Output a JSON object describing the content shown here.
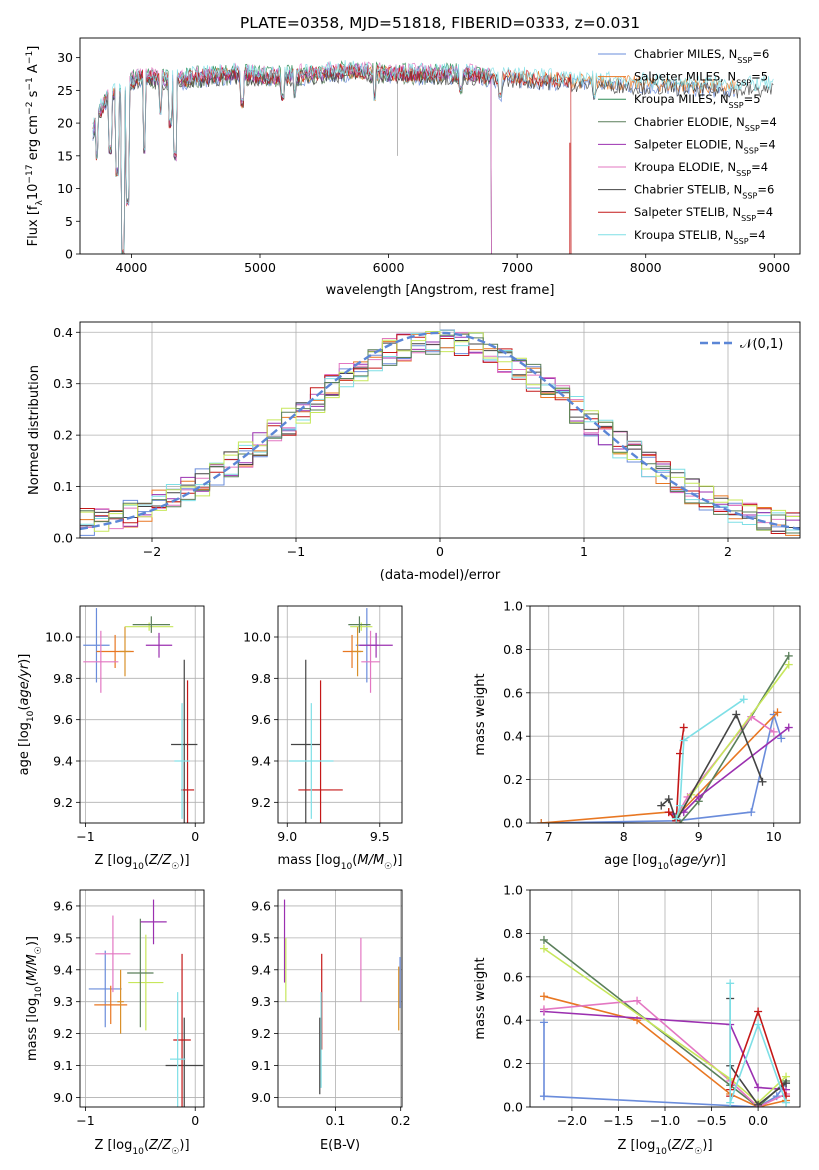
{
  "figure_title": "PLATE=0358, MJD=51818, FIBERID=0333, z=0.031",
  "colors": {
    "Chabrier MILES": "#6a8cdb",
    "Salpeter MILES": "#e87722",
    "Kroupa MILES": "#2e8b57",
    "Chabrier ELODIE": "#5a7f5a",
    "Salpeter ELODIE": "#9b30b0",
    "Kroupa ELODIE": "#e377c2",
    "Chabrier STELIB": "#444444",
    "Salpeter STELIB": "#c41818",
    "Kroupa STELIB": "#7edfe6",
    "extra_lime": "#c7e75b",
    "extra_orange": "#d9902a",
    "gaussian": "#5b86d6",
    "grid": "#b0b0b0"
  },
  "chart_data": [
    {
      "type": "line",
      "id": "spectrum",
      "title": "PLATE=0358, MJD=51818, FIBERID=0333, z=0.031",
      "xlabel": "wavelength [Angstrom, rest frame]",
      "ylabel": "Flux [f_λ10^-17 erg cm^-2 s^-1 A^-1]",
      "xlim": [
        3600,
        9200
      ],
      "ylim": [
        0,
        33
      ],
      "xticks": [
        4000,
        5000,
        6000,
        7000,
        8000,
        9000
      ],
      "yticks": [
        0,
        5,
        10,
        15,
        20,
        25,
        30
      ],
      "grid": false,
      "legend_position": "top-right",
      "series": [
        {
          "name": "Chabrier MILES",
          "nssp": "6",
          "xrange": [
            3700,
            8700
          ]
        },
        {
          "name": "Salpeter MILES",
          "nssp": "5",
          "xrange": [
            3700,
            8700
          ]
        },
        {
          "name": "Kroupa MILES",
          "nssp": "5",
          "xrange": [
            3700,
            6800
          ]
        },
        {
          "name": "Chabrier ELODIE",
          "nssp": "4",
          "xrange": [
            3700,
            6800
          ]
        },
        {
          "name": "Salpeter ELODIE",
          "nssp": "4",
          "xrange": [
            3700,
            6800
          ]
        },
        {
          "name": "Kroupa ELODIE",
          "nssp": "4",
          "xrange": [
            3700,
            6800
          ]
        },
        {
          "name": "Chabrier STELIB",
          "nssp": "6",
          "xrange": [
            3700,
            9000
          ]
        },
        {
          "name": "Salpeter STELIB",
          "nssp": "4",
          "xrange": [
            3700,
            7420
          ]
        },
        {
          "name": "Kroupa STELIB",
          "nssp": "4",
          "xrange": [
            3700,
            9000
          ]
        }
      ],
      "continuum": [
        [
          3700,
          19
        ],
        [
          3760,
          22
        ],
        [
          3850,
          24.5
        ],
        [
          3950,
          24.5
        ],
        [
          4000,
          26.5
        ],
        [
          4100,
          27
        ],
        [
          4300,
          26.5
        ],
        [
          4500,
          27
        ],
        [
          4800,
          27.5
        ],
        [
          5100,
          27
        ],
        [
          5400,
          27.5
        ],
        [
          5700,
          28
        ],
        [
          6000,
          27.5
        ],
        [
          6300,
          27.5
        ],
        [
          6600,
          27.5
        ],
        [
          6800,
          27
        ],
        [
          7000,
          27
        ],
        [
          7400,
          26.5
        ],
        [
          8000,
          26
        ],
        [
          8600,
          25.5
        ],
        [
          9000,
          25.5
        ]
      ],
      "absorption_lines": [
        [
          3730,
          15
        ],
        [
          3835,
          16
        ],
        [
          3889,
          12.5
        ],
        [
          3934,
          0
        ],
        [
          3968,
          8
        ],
        [
          4102,
          16
        ],
        [
          4227,
          22
        ],
        [
          4304,
          20
        ],
        [
          4340,
          15
        ],
        [
          4861,
          23
        ],
        [
          5175,
          24
        ],
        [
          5270,
          24.5
        ],
        [
          5893,
          24
        ],
        [
          6563,
          25
        ],
        [
          6867,
          24
        ],
        [
          7600,
          24
        ]
      ]
    },
    {
      "type": "histogram",
      "id": "residuals",
      "xlabel": "(data-model)/error",
      "ylabel": "Normed distribution",
      "xlim": [
        -2.5,
        2.5
      ],
      "ylim": [
        0,
        0.42
      ],
      "xticks": [
        -2,
        -1,
        0,
        1,
        2
      ],
      "yticks": [
        0.0,
        0.1,
        0.2,
        0.3,
        0.4
      ],
      "grid": true,
      "legend_position": "top-right",
      "legend_label": "𝒩(0,1)",
      "bin_width": 0.1
    },
    {
      "type": "scatter",
      "id": "age_vs_Z",
      "xlabel": "Z [log10(Z/Z☉)]",
      "ylabel": "age [log10(age/yr)]",
      "xlim": [
        -1.05,
        0.08
      ],
      "ylim": [
        9.1,
        10.15
      ],
      "xticks": [
        -1,
        0
      ],
      "yticks": [
        9.2,
        9.4,
        9.6,
        9.8,
        10.0
      ],
      "grid": true,
      "points": [
        {
          "c": "Chabrier MILES",
          "x": -0.9,
          "y": 9.96,
          "ex": 0.12,
          "ey": 0.18
        },
        {
          "c": "Salpeter MILES",
          "x": -0.73,
          "y": 9.93,
          "ex": 0.17,
          "ey": 0.08
        },
        {
          "c": "Kroupa ELODIE",
          "x": -0.86,
          "y": 9.88,
          "ex": 0.16,
          "ey": 0.15
        },
        {
          "c": "extra_orange",
          "x": -0.64,
          "y": 9.93,
          "ex": 0.05,
          "ey": 0.12
        },
        {
          "c": "extra_lime",
          "x": -0.42,
          "y": 10.05,
          "ex": 0.22,
          "ey": 0.02
        },
        {
          "c": "Chabrier ELODIE",
          "x": -0.4,
          "y": 10.06,
          "ex": 0.17,
          "ey": 0.04
        },
        {
          "c": "Salpeter ELODIE",
          "x": -0.33,
          "y": 9.96,
          "ex": 0.12,
          "ey": 0.06
        },
        {
          "c": "Chabrier STELIB",
          "x": -0.1,
          "y": 9.48,
          "ex": 0.12,
          "ey": 0.41
        },
        {
          "c": "Salpeter STELIB",
          "x": -0.07,
          "y": 9.26,
          "ex": 0.06,
          "ey": 0.53
        },
        {
          "c": "Kroupa STELIB",
          "x": -0.12,
          "y": 9.4,
          "ex": 0.07,
          "ey": 0.28
        }
      ]
    },
    {
      "type": "scatter",
      "id": "age_vs_mass",
      "xlabel": "mass [log10(M/M☉)]",
      "ylabel": "",
      "xlim": [
        8.95,
        9.62
      ],
      "ylim": [
        9.1,
        10.15
      ],
      "xticks": [
        9.0,
        9.5
      ],
      "yticks": [
        9.2,
        9.4,
        9.6,
        9.8,
        10.0
      ],
      "grid": true,
      "points": [
        {
          "c": "Chabrier MILES",
          "x": 9.43,
          "y": 9.96,
          "ex": 0.06,
          "ey": 0.18
        },
        {
          "c": "Salpeter MILES",
          "x": 9.35,
          "y": 9.93,
          "ex": 0.05,
          "ey": 0.08
        },
        {
          "c": "Kroupa ELODIE",
          "x": 9.45,
          "y": 9.88,
          "ex": 0.05,
          "ey": 0.15
        },
        {
          "c": "extra_orange",
          "x": 9.38,
          "y": 9.93,
          "ex": 0.03,
          "ey": 0.12
        },
        {
          "c": "extra_lime",
          "x": 9.4,
          "y": 10.05,
          "ex": 0.06,
          "ey": 0.02
        },
        {
          "c": "Chabrier ELODIE",
          "x": 9.39,
          "y": 10.06,
          "ex": 0.06,
          "ey": 0.04
        },
        {
          "c": "Salpeter ELODIE",
          "x": 9.48,
          "y": 9.96,
          "ex": 0.09,
          "ey": 0.06
        },
        {
          "c": "Chabrier STELIB",
          "x": 9.1,
          "y": 9.48,
          "ex": 0.08,
          "ey": 0.41
        },
        {
          "c": "Salpeter STELIB",
          "x": 9.18,
          "y": 9.26,
          "ex": 0.12,
          "ey": 0.53
        },
        {
          "c": "Kroupa STELIB",
          "x": 9.13,
          "y": 9.4,
          "ex": 0.12,
          "ey": 0.28
        }
      ]
    },
    {
      "type": "line",
      "id": "massweight_vs_age",
      "xlabel": "age [log10(age/yr)]",
      "ylabel": "mass weight",
      "xlim": [
        6.75,
        10.35
      ],
      "ylim": [
        0,
        1.0
      ],
      "xticks": [
        7,
        8,
        9,
        10
      ],
      "yticks": [
        0.0,
        0.2,
        0.4,
        0.6,
        0.8,
        1.0
      ],
      "grid": true,
      "series": [
        {
          "c": "Chabrier MILES",
          "x": [
            6.9,
            8.7,
            9.7,
            10.0,
            10.1
          ],
          "y": [
            0.0,
            0.01,
            0.05,
            0.5,
            0.39
          ]
        },
        {
          "c": "Salpeter MILES",
          "x": [
            6.9,
            8.6,
            8.7,
            10.05
          ],
          "y": [
            0.0,
            0.05,
            0.03,
            0.51
          ]
        },
        {
          "c": "Chabrier ELODIE",
          "x": [
            8.75,
            9.0,
            10.2
          ],
          "y": [
            0.0,
            0.1,
            0.77
          ]
        },
        {
          "c": "Salpeter ELODIE",
          "x": [
            8.65,
            8.8,
            9.0,
            10.2
          ],
          "y": [
            0.04,
            0.05,
            0.12,
            0.44
          ]
        },
        {
          "c": "Kroupa ELODIE",
          "x": [
            8.7,
            8.85,
            9.7,
            10.0
          ],
          "y": [
            0.03,
            0.12,
            0.49,
            0.42
          ]
        },
        {
          "c": "extra_lime",
          "x": [
            8.7,
            8.9,
            10.2
          ],
          "y": [
            0.02,
            0.13,
            0.73
          ]
        },
        {
          "c": "Chabrier STELIB",
          "x": [
            8.5,
            8.6,
            8.7,
            9.5,
            9.85
          ],
          "y": [
            0.08,
            0.11,
            0.01,
            0.5,
            0.19
          ]
        },
        {
          "c": "Salpeter STELIB",
          "x": [
            8.6,
            8.7,
            8.75,
            8.8
          ],
          "y": [
            0.05,
            0.01,
            0.32,
            0.44
          ]
        },
        {
          "c": "Kroupa STELIB",
          "x": [
            8.7,
            8.75,
            8.8,
            9.6
          ],
          "y": [
            0.02,
            0.08,
            0.38,
            0.57
          ]
        }
      ]
    },
    {
      "type": "scatter",
      "id": "mass_vs_Z",
      "xlabel": "Z [log10(Z/Z☉)]",
      "ylabel": "mass [log10(M/M☉)]",
      "xlim": [
        -1.05,
        0.08
      ],
      "ylim": [
        8.97,
        9.65
      ],
      "xticks": [
        -1,
        0
      ],
      "yticks": [
        9.0,
        9.1,
        9.2,
        9.3,
        9.4,
        9.5,
        9.6
      ],
      "grid": true,
      "points": [
        {
          "c": "Chabrier MILES",
          "x": -0.82,
          "y": 9.34,
          "ex": 0.15,
          "ey": 0.12
        },
        {
          "c": "Salpeter MILES",
          "x": -0.77,
          "y": 9.29,
          "ex": 0.15,
          "ey": 0.06
        },
        {
          "c": "Kroupa ELODIE",
          "x": -0.75,
          "y": 9.45,
          "ex": 0.16,
          "ey": 0.12
        },
        {
          "c": "extra_orange",
          "x": -0.68,
          "y": 9.3,
          "ex": 0.03,
          "ey": 0.1
        },
        {
          "c": "extra_lime",
          "x": -0.45,
          "y": 9.36,
          "ex": 0.16,
          "ey": 0.15
        },
        {
          "c": "Chabrier ELODIE",
          "x": -0.5,
          "y": 9.39,
          "ex": 0.12,
          "ey": 0.17
        },
        {
          "c": "Salpeter ELODIE",
          "x": -0.38,
          "y": 9.55,
          "ex": 0.12,
          "ey": 0.07
        },
        {
          "c": "Chabrier STELIB",
          "x": -0.1,
          "y": 9.1,
          "ex": 0.17,
          "ey": 0.15
        },
        {
          "c": "Salpeter STELIB",
          "x": -0.12,
          "y": 9.18,
          "ex": 0.08,
          "ey": 0.27
        },
        {
          "c": "Kroupa STELIB",
          "x": -0.16,
          "y": 9.12,
          "ex": 0.07,
          "ey": 0.21
        }
      ]
    },
    {
      "type": "scatter",
      "id": "mass_vs_EBV",
      "xlabel": "E(B-V)",
      "ylabel": "",
      "xlim": [
        0.012,
        0.202
      ],
      "ylim": [
        8.97,
        9.65
      ],
      "xticks": [
        0.1,
        0.2
      ],
      "yticks": [
        9.0,
        9.1,
        9.2,
        9.3,
        9.4,
        9.5,
        9.6
      ],
      "grid": true,
      "points": [
        {
          "c": "Salpeter ELODIE",
          "x": 0.022,
          "y": 9.49,
          "ex": 0,
          "ey": 0.13
        },
        {
          "c": "extra_lime",
          "x": 0.024,
          "y": 9.4,
          "ex": 0,
          "ey": 0.1
        },
        {
          "c": "Chabrier STELIB",
          "x": 0.076,
          "y": 9.13,
          "ex": 0,
          "ey": 0.12
        },
        {
          "c": "Salpeter STELIB",
          "x": 0.079,
          "y": 9.3,
          "ex": 0,
          "ey": 0.15
        },
        {
          "c": "Kroupa STELIB",
          "x": 0.078,
          "y": 9.18,
          "ex": 0,
          "ey": 0.15
        },
        {
          "c": "Kroupa ELODIE",
          "x": 0.139,
          "y": 9.4,
          "ex": 0,
          "ey": 0.1
        },
        {
          "c": "extra_orange",
          "x": 0.197,
          "y": 9.31,
          "ex": 0,
          "ey": 0.1
        },
        {
          "c": "Chabrier MILES",
          "x": 0.199,
          "y": 9.36,
          "ex": 0,
          "ey": 0.08
        }
      ]
    },
    {
      "type": "line",
      "id": "massweight_vs_Z",
      "xlabel": "Z [log10(Z/Z☉)]",
      "ylabel": "mass weight",
      "xlim": [
        -2.45,
        0.45
      ],
      "ylim": [
        0,
        1.0
      ],
      "xticks": [
        -2.0,
        -1.5,
        -1.0,
        -0.5,
        0.0
      ],
      "yticks": [
        0.0,
        0.2,
        0.4,
        0.6,
        0.8,
        1.0
      ],
      "grid": true,
      "series": [
        {
          "c": "Chabrier MILES",
          "x": [
            -2.3,
            -2.3,
            -2.3,
            0.0,
            0.2,
            0.3
          ],
          "y": [
            0.39,
            0.05,
            0.05,
            0.0,
            0.05,
            0.11
          ]
        },
        {
          "c": "Salpeter MILES",
          "x": [
            -2.3,
            -1.3,
            -0.3,
            0.0,
            0.3
          ],
          "y": [
            0.51,
            0.4,
            0.06,
            0.0,
            0.03
          ]
        },
        {
          "c": "Chabrier ELODIE",
          "x": [
            -2.3,
            -0.3,
            0.0,
            0.3
          ],
          "y": [
            0.77,
            0.1,
            0.0,
            0.12
          ]
        },
        {
          "c": "Salpeter ELODIE",
          "x": [
            -2.3,
            -0.3,
            0.0,
            0.3
          ],
          "y": [
            0.44,
            0.38,
            0.09,
            0.08
          ]
        },
        {
          "c": "Kroupa ELODIE",
          "x": [
            -2.3,
            -1.3,
            -0.3,
            0.0,
            0.3
          ],
          "y": [
            0.45,
            0.49,
            0.12,
            0.0,
            0.06
          ]
        },
        {
          "c": "extra_lime",
          "x": [
            -2.3,
            -0.3,
            0.0,
            0.3
          ],
          "y": [
            0.73,
            0.13,
            0.02,
            0.14
          ]
        },
        {
          "c": "Chabrier STELIB",
          "x": [
            -0.3,
            -0.3,
            0.0,
            0.3
          ],
          "y": [
            0.5,
            0.19,
            0.01,
            0.11
          ]
        },
        {
          "c": "Salpeter STELIB",
          "x": [
            -0.3,
            -0.3,
            0.0,
            0.3
          ],
          "y": [
            0.05,
            0.08,
            0.44,
            0.05
          ]
        },
        {
          "c": "Kroupa STELIB",
          "x": [
            -0.3,
            -0.3,
            0.0,
            0.3
          ],
          "y": [
            0.57,
            0.02,
            0.38,
            0.02
          ]
        }
      ]
    }
  ]
}
